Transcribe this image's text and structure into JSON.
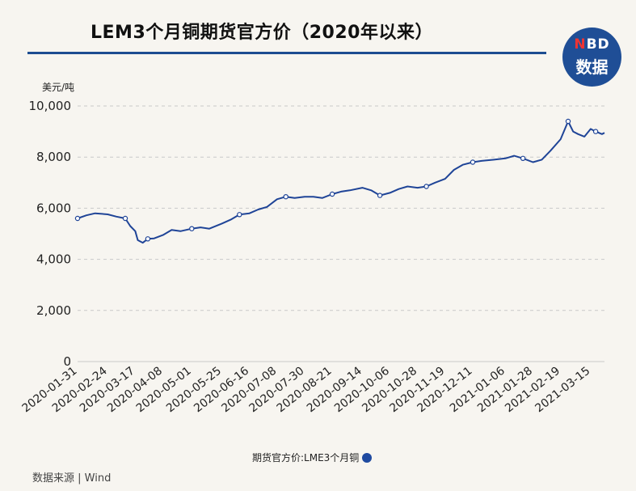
{
  "title": "LEM3个月铜期货官方价（2020年以来）",
  "logo": {
    "brand": "NBD",
    "sub": "数据"
  },
  "source": "数据来源 | Wind",
  "colors": {
    "line": "#1f4497",
    "accent": "#1d4d91",
    "grid": "#c9c9c9"
  },
  "chart_data": {
    "type": "line",
    "title": "LEM3个月铜期货官方价（2020年以来）",
    "ylabel": "美元/吨",
    "xlabel": "",
    "ylim": [
      0,
      10000
    ],
    "yticks": [
      0,
      2000,
      4000,
      6000,
      8000,
      10000
    ],
    "ytick_labels": [
      "0",
      "2,000",
      "4,000",
      "6,000",
      "8,000",
      "10,000"
    ],
    "grid": "horizontal dashed",
    "legend_placement": "bottom",
    "xtick_labels": [
      "2020-01-31",
      "2020-02-24",
      "2020-03-17",
      "2020-04-08",
      "2020-05-01",
      "2020-05-25",
      "2020-06-16",
      "2020-07-08",
      "2020-07-30",
      "2020-08-21",
      "2020-09-14",
      "2020-10-06",
      "2020-10-28",
      "2020-11-19",
      "2020-12-11",
      "2021-01-06",
      "2021-01-28",
      "2021-02-19",
      "2021-03-15"
    ],
    "series": [
      {
        "name": "期货官方价:LME3个月铜",
        "x": [
          "2020-01-31",
          "2020-02-07",
          "2020-02-14",
          "2020-02-24",
          "2020-03-02",
          "2020-03-09",
          "2020-03-13",
          "2020-03-17",
          "2020-03-19",
          "2020-03-23",
          "2020-03-27",
          "2020-04-01",
          "2020-04-08",
          "2020-04-15",
          "2020-04-22",
          "2020-05-01",
          "2020-05-08",
          "2020-05-15",
          "2020-05-25",
          "2020-06-01",
          "2020-06-08",
          "2020-06-16",
          "2020-06-23",
          "2020-06-30",
          "2020-07-08",
          "2020-07-15",
          "2020-07-22",
          "2020-07-30",
          "2020-08-06",
          "2020-08-13",
          "2020-08-21",
          "2020-08-28",
          "2020-09-04",
          "2020-09-14",
          "2020-09-21",
          "2020-09-28",
          "2020-10-06",
          "2020-10-13",
          "2020-10-20",
          "2020-10-28",
          "2020-11-04",
          "2020-11-11",
          "2020-11-19",
          "2020-11-26",
          "2020-12-03",
          "2020-12-11",
          "2020-12-18",
          "2020-12-28",
          "2021-01-06",
          "2021-01-13",
          "2021-01-20",
          "2021-01-28",
          "2021-02-04",
          "2021-02-11",
          "2021-02-19",
          "2021-02-25",
          "2021-03-01",
          "2021-03-05",
          "2021-03-10",
          "2021-03-15",
          "2021-03-19",
          "2021-03-24",
          "2021-03-26"
        ],
        "values": [
          5600,
          5720,
          5800,
          5760,
          5670,
          5600,
          5300,
          5100,
          4750,
          4650,
          4800,
          4820,
          4950,
          5150,
          5100,
          5200,
          5250,
          5200,
          5400,
          5550,
          5750,
          5800,
          5950,
          6050,
          6350,
          6450,
          6400,
          6450,
          6450,
          6400,
          6550,
          6650,
          6700,
          6800,
          6700,
          6500,
          6600,
          6750,
          6850,
          6800,
          6850,
          7000,
          7150,
          7500,
          7700,
          7800,
          7850,
          7900,
          7950,
          8050,
          7950,
          7800,
          7900,
          8250,
          8700,
          9400,
          9000,
          8900,
          8800,
          9100,
          9000,
          8900,
          8950
        ]
      }
    ]
  }
}
